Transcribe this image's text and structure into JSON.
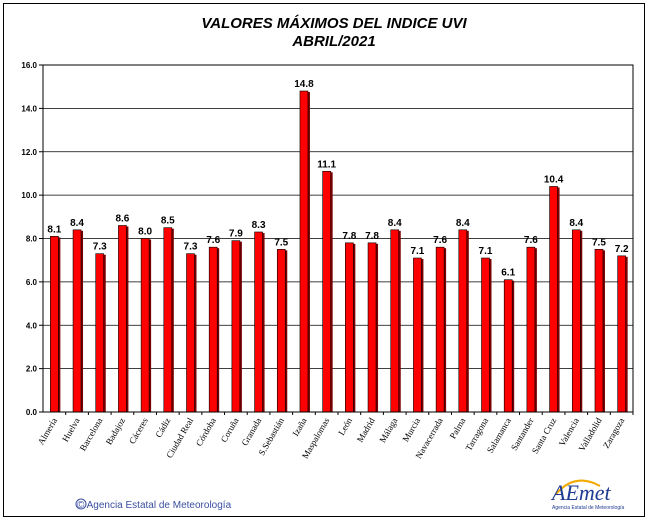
{
  "chart_data": {
    "type": "bar",
    "title": "VALORES MÁXIMOS DEL INDICE UVI",
    "subtitle": "ABRIL/2021",
    "xlabel": "",
    "ylabel": "",
    "ylim": [
      0,
      16
    ],
    "yticks": [
      "0.0",
      "2.0",
      "4.0",
      "6.0",
      "8.0",
      "10.0",
      "12.0",
      "14.0",
      "16.0"
    ],
    "grid": true,
    "bar_color": "#ff0000",
    "categories": [
      "Almería",
      "Huelva",
      "Barcelona",
      "Badajoz",
      "Cáceres",
      "Cádiz",
      "Ciudad Real",
      "Córdoba",
      "Coruña",
      "Granada",
      "S.Sebastián",
      "Izaña",
      "Maspalomas",
      "León",
      "Madrid",
      "Málaga",
      "Murcia",
      "Navacerrada",
      "Palma",
      "Tarragona",
      "Salamanca",
      "Santander",
      "Santa Cruz",
      "Valencia",
      "Valladolid",
      "Zaragoza"
    ],
    "values": [
      8.1,
      8.4,
      7.3,
      8.6,
      8.0,
      8.5,
      7.3,
      7.6,
      7.9,
      8.3,
      7.5,
      14.8,
      11.1,
      7.8,
      7.8,
      8.4,
      7.1,
      7.6,
      8.4,
      7.1,
      6.1,
      7.6,
      10.4,
      8.4,
      7.5,
      7.2
    ],
    "value_labels": [
      "8.1",
      "8.4",
      "7.3",
      "8.6",
      "8.0",
      "8.5",
      "7.3",
      "7.6",
      "7.9",
      "8.3",
      "7.5",
      "14.8",
      "11.1",
      "7.8",
      "7.8",
      "8.4",
      "7.1",
      "7.6",
      "8.4",
      "7.1",
      "6.1",
      "7.6",
      "10.4",
      "8.4",
      "7.5",
      "7.2"
    ]
  },
  "footer": {
    "copyright": "© Agencia Estatal de Meteorología",
    "logo_text": "AEmet",
    "logo_subtext": "Agencia Estatal de Meteorología"
  }
}
